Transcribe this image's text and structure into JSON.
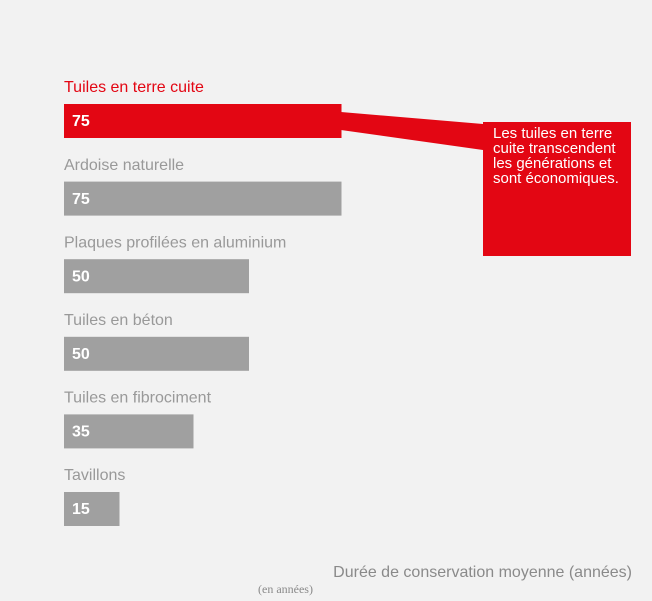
{
  "chart_data": {
    "type": "barh",
    "categories": [
      "Tuiles en terre cuite",
      "Ardoise naturelle",
      "Plaques profilées en aluminium",
      "Tuiles en béton",
      "Tuiles en fibrociment",
      "Tavillons"
    ],
    "values": [
      75,
      75,
      50,
      50,
      35,
      15
    ],
    "colors": [
      "#e30613",
      "#a0a0a0",
      "#a0a0a0",
      "#a0a0a0",
      "#a0a0a0",
      "#a0a0a0"
    ],
    "annotation": "Les tuiles en terre cuite transcendent les générations et sont économiques.",
    "xlabel": "Durée de conservation moyenne (années)",
    "xlabel_sub": "(en années)"
  }
}
